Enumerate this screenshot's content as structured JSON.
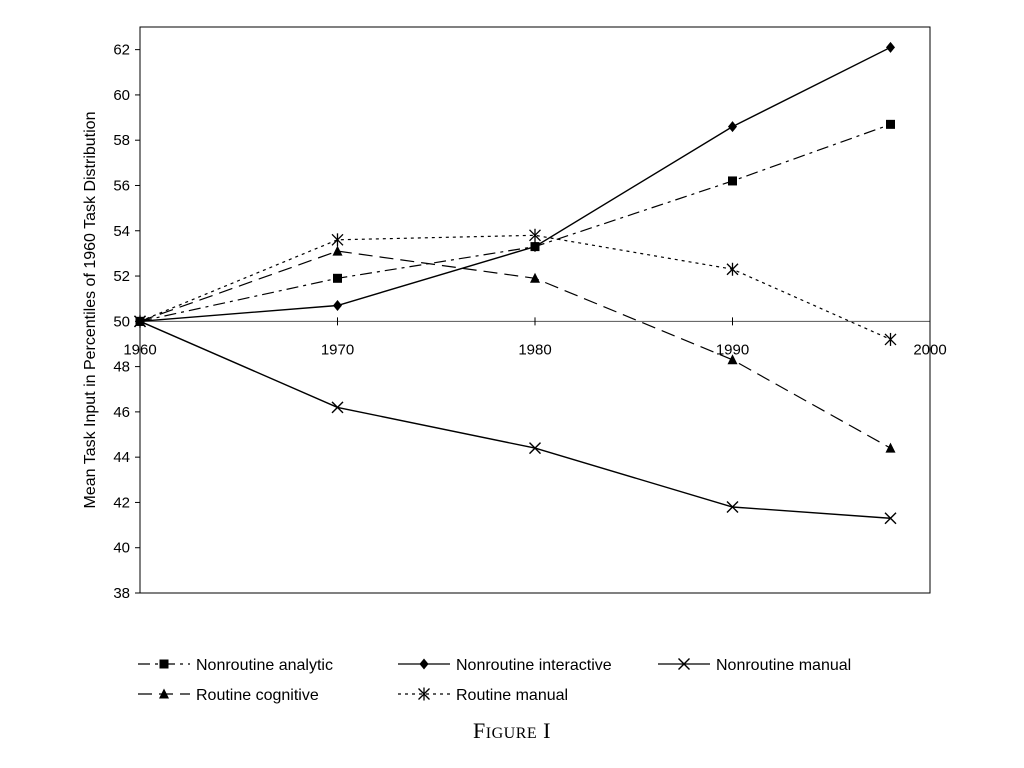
{
  "chart_data": {
    "type": "line",
    "title": "",
    "xlabel": "",
    "ylabel": "Mean Task Input in Percentiles of 1960 Task Distribution",
    "xlim": [
      1960,
      2000
    ],
    "ylim": [
      38,
      63
    ],
    "x_ticks": [
      "1960",
      "1970",
      "1980",
      "1990",
      "2000"
    ],
    "y_ticks": [
      "38",
      "40",
      "42",
      "44",
      "46",
      "48",
      "50",
      "52",
      "54",
      "56",
      "58",
      "60",
      "62"
    ],
    "x_axis_at_y": 50,
    "grid": false,
    "legend_position": "bottom",
    "x": [
      1960,
      1970,
      1980,
      1990,
      1998
    ],
    "series": [
      {
        "name": "Nonroutine analytic",
        "values": [
          50.0,
          51.9,
          53.3,
          56.2,
          58.7
        ]
      },
      {
        "name": "Nonroutine interactive",
        "values": [
          50.0,
          50.7,
          53.3,
          58.6,
          62.1
        ]
      },
      {
        "name": "Nonroutine manual",
        "values": [
          50.0,
          46.2,
          44.4,
          41.8,
          41.3
        ]
      },
      {
        "name": "Routine cognitive",
        "values": [
          50.0,
          53.1,
          51.9,
          48.3,
          44.4
        ]
      },
      {
        "name": "Routine manual",
        "values": [
          50.0,
          53.6,
          53.8,
          52.3,
          49.2
        ]
      }
    ]
  },
  "caption": {
    "first": "F",
    "rest": "IGURE",
    "numeral": "I"
  },
  "styles": {
    "Nonroutine analytic": {
      "dash": "dashdot",
      "marker": "square"
    },
    "Nonroutine interactive": {
      "dash": "solid",
      "marker": "diamond"
    },
    "Nonroutine manual": {
      "dash": "solid",
      "marker": "x"
    },
    "Routine cognitive": {
      "dash": "longdash",
      "marker": "triangle"
    },
    "Routine manual": {
      "dash": "dotted",
      "marker": "asterisk"
    }
  },
  "line_color": "#000000"
}
